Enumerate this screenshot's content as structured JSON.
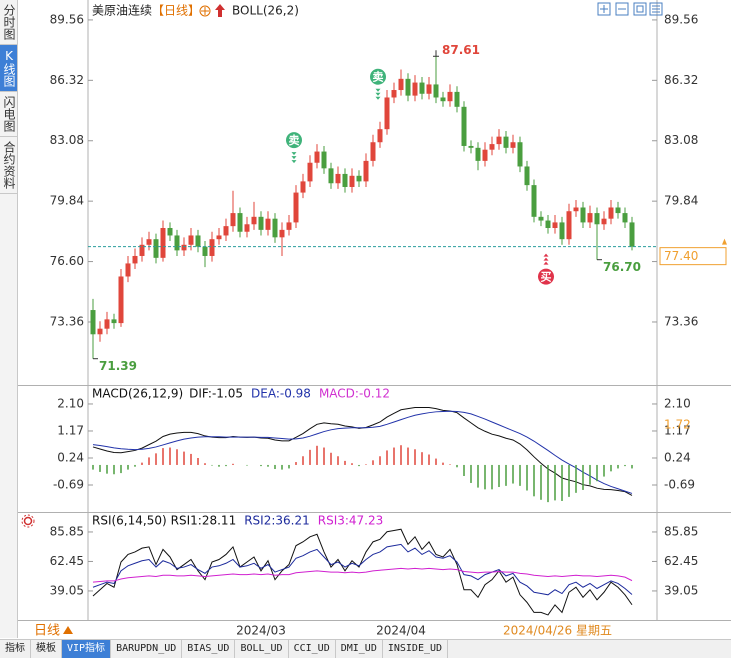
{
  "ui": {
    "side_tabs": [
      {
        "label": "分时图",
        "active": false
      },
      {
        "label": "K线图",
        "active": true
      },
      {
        "label": "闪电图",
        "active": false
      },
      {
        "label": "合约资料",
        "active": false
      }
    ],
    "bottom_tabs": [
      {
        "label": "指标",
        "active": false
      },
      {
        "label": "模板",
        "active": false
      },
      {
        "label": "VIP指标",
        "active": true
      },
      {
        "label": "BARUPDN_UD",
        "active": false
      },
      {
        "label": "BIAS_UD",
        "active": false
      },
      {
        "label": "BOLL_UD",
        "active": false
      },
      {
        "label": "CCI_UD",
        "active": false
      },
      {
        "label": "DMI_UD",
        "active": false
      },
      {
        "label": "INSIDE_UD",
        "active": false
      }
    ],
    "period_button": "日线",
    "cursor_date": "2024/04/26 星期五"
  },
  "chart_data": [
    {
      "type": "candlestick",
      "title": "美原油连续",
      "period": "【日线】",
      "indicator": "BOLL(26,2)",
      "categories": [
        null,
        null,
        null,
        null,
        null,
        null,
        null,
        null,
        null,
        null,
        null,
        null,
        null,
        null,
        null,
        null,
        null,
        null,
        null,
        null,
        null,
        null,
        null,
        null,
        "2024/03",
        null,
        null,
        null,
        null,
        null,
        null,
        null,
        null,
        null,
        null,
        null,
        null,
        null,
        null,
        null,
        null,
        null,
        null,
        null,
        "2024/04",
        null,
        null,
        null,
        null,
        null,
        null,
        null,
        null,
        null,
        null,
        null,
        null,
        null,
        null,
        null,
        null,
        null,
        null,
        null,
        null,
        null,
        null,
        null,
        null,
        null,
        null,
        null,
        null,
        null,
        null,
        null,
        null,
        null
      ],
      "open": [
        74.0,
        72.7,
        73.0,
        73.5,
        73.3,
        75.8,
        76.5,
        76.9,
        77.5,
        77.8,
        76.8,
        78.4,
        78.0,
        77.2,
        77.5,
        78.0,
        77.4,
        76.9,
        77.8,
        78.0,
        78.5,
        79.2,
        78.2,
        78.6,
        79.0,
        78.3,
        78.9,
        77.9,
        78.3,
        78.7,
        80.3,
        80.9,
        81.9,
        82.5,
        81.6,
        80.8,
        81.3,
        80.6,
        81.2,
        80.9,
        82.0,
        83.0,
        83.7,
        85.4,
        85.8,
        86.4,
        85.5,
        86.2,
        85.6,
        86.1,
        85.4,
        85.2,
        85.7,
        84.9,
        82.8,
        82.7,
        82.0,
        82.6,
        82.9,
        83.3,
        82.7,
        83.0,
        81.7,
        80.7,
        79.0,
        78.8,
        78.4,
        78.7,
        77.8,
        79.3,
        79.5,
        78.7,
        79.2,
        78.6,
        78.9,
        79.5,
        79.2,
        78.7
      ],
      "high": [
        74.6,
        73.4,
        73.9,
        73.8,
        76.2,
        76.9,
        77.3,
        77.9,
        78.2,
        78.1,
        78.8,
        78.7,
        78.3,
        77.9,
        78.4,
        78.3,
        77.7,
        78.2,
        78.4,
        78.9,
        80.4,
        79.5,
        79.0,
        79.8,
        79.3,
        79.3,
        79.2,
        78.7,
        79.1,
        80.7,
        81.3,
        82.3,
        82.9,
        82.8,
        81.9,
        81.7,
        81.6,
        81.6,
        81.5,
        82.4,
        83.4,
        84.1,
        85.8,
        86.2,
        86.9,
        86.7,
        86.6,
        86.5,
        86.5,
        87.61,
        85.7,
        86.1,
        86.0,
        85.2,
        83.1,
        83.0,
        83.0,
        83.3,
        83.7,
        83.6,
        83.4,
        83.3,
        82.0,
        81.0,
        79.3,
        79.1,
        79.1,
        79.0,
        79.7,
        79.9,
        79.8,
        79.6,
        79.5,
        79.3,
        79.9,
        79.8,
        79.5,
        79.0
      ],
      "low": [
        71.39,
        72.3,
        72.7,
        73.0,
        73.1,
        75.5,
        76.2,
        76.6,
        77.2,
        76.5,
        76.6,
        77.7,
        76.9,
        76.9,
        77.2,
        77.1,
        76.3,
        76.6,
        77.5,
        77.7,
        78.2,
        77.9,
        77.9,
        78.3,
        78.0,
        78.0,
        77.6,
        76.9,
        78.0,
        78.4,
        80.0,
        80.6,
        81.6,
        81.3,
        80.5,
        80.5,
        80.3,
        80.3,
        80.6,
        80.6,
        81.7,
        82.7,
        83.4,
        85.1,
        85.5,
        85.2,
        85.2,
        85.3,
        85.3,
        85.1,
        84.9,
        84.9,
        84.6,
        82.5,
        82.4,
        81.5,
        81.7,
        82.3,
        82.6,
        82.4,
        82.4,
        81.4,
        80.4,
        78.7,
        78.5,
        78.1,
        78.1,
        77.5,
        77.5,
        79.0,
        78.4,
        78.4,
        76.7,
        78.3,
        78.6,
        78.9,
        78.4,
        77.2
      ],
      "close": [
        72.7,
        73.0,
        73.5,
        73.3,
        75.8,
        76.5,
        76.9,
        77.5,
        77.8,
        76.8,
        78.4,
        78.0,
        77.2,
        77.5,
        78.0,
        77.4,
        76.9,
        77.8,
        78.0,
        78.5,
        79.2,
        78.2,
        78.6,
        79.0,
        78.3,
        78.9,
        77.9,
        78.3,
        78.7,
        80.3,
        80.9,
        81.9,
        82.5,
        81.6,
        80.8,
        81.3,
        80.6,
        81.2,
        80.9,
        82.0,
        83.0,
        83.7,
        85.4,
        85.8,
        86.4,
        85.5,
        86.2,
        85.6,
        86.1,
        85.4,
        85.2,
        85.7,
        84.9,
        82.8,
        82.7,
        82.0,
        82.6,
        82.9,
        83.3,
        82.7,
        83.0,
        81.7,
        80.7,
        79.0,
        78.8,
        78.4,
        78.7,
        77.8,
        79.3,
        79.5,
        78.7,
        79.2,
        78.6,
        78.9,
        79.5,
        79.2,
        78.7,
        77.4
      ],
      "up_color": "#e0463b",
      "down_color": "#4a9e3f",
      "ylim": [
        69.98,
        90.36
      ],
      "yticks": [
        89.56,
        86.32,
        83.08,
        79.84,
        {
          "value": 76.6,
          "label": "76.60"
        },
        73.36
      ],
      "annotations": [
        {
          "value": 87.61,
          "label": "87.61"
        },
        {
          "value": 71.39,
          "label": "71.39"
        },
        {
          "value": 76.7,
          "label": "76.70"
        }
      ],
      "signals": [
        null,
        null,
        null,
        null,
        null,
        null,
        null,
        null,
        null,
        null,
        null,
        null,
        null,
        null,
        null,
        null,
        null,
        null,
        null,
        null,
        null,
        null,
        null,
        null,
        null,
        null,
        null,
        null,
        null,
        {
          "label": "卖",
          "side": "sell"
        },
        null,
        null,
        null,
        null,
        null,
        null,
        null,
        null,
        null,
        null,
        null,
        {
          "label": "卖",
          "side": "sell"
        },
        null,
        null,
        null,
        null,
        null,
        null,
        null,
        null,
        null,
        null,
        null,
        null,
        null,
        null,
        null,
        null,
        null,
        null,
        null,
        null,
        null,
        null,
        null,
        {
          "label": "买",
          "side": "buy"
        },
        null,
        null,
        null,
        null,
        null,
        null,
        null,
        null,
        null,
        null,
        null,
        null
      ],
      "last_price": {
        "value": 77.4,
        "label": "77.40"
      },
      "last_price_color": "#f0a030"
    },
    {
      "type": "macd",
      "title": "MACD(26,12,9)",
      "series": [
        {
          "name": "DIF:",
          "color": "#111111",
          "latest": -1.05,
          "style": "line",
          "values": [
            0.62,
            0.55,
            0.48,
            0.43,
            0.42,
            0.46,
            0.5,
            0.58,
            0.7,
            0.82,
            0.98,
            1.06,
            1.1,
            1.12,
            1.12,
            1.08,
            1.0,
            0.96,
            0.94,
            0.94,
            0.98,
            0.96,
            0.95,
            0.96,
            0.93,
            0.92,
            0.86,
            0.83,
            0.83,
            0.95,
            1.08,
            1.25,
            1.4,
            1.45,
            1.42,
            1.4,
            1.34,
            1.31,
            1.26,
            1.29,
            1.38,
            1.48,
            1.65,
            1.78,
            1.9,
            1.94,
            1.98,
            1.98,
            1.98,
            1.94,
            1.88,
            1.86,
            1.8,
            1.62,
            1.45,
            1.28,
            1.16,
            1.06,
            1.0,
            0.92,
            0.86,
            0.72,
            0.52,
            0.28,
            0.06,
            -0.14,
            -0.28,
            -0.45,
            -0.52,
            -0.58,
            -0.68,
            -0.72,
            -0.8,
            -0.84,
            -0.85,
            -0.88,
            -0.92,
            -1.05
          ]
        },
        {
          "name": "DEA:",
          "color": "#2233aa",
          "latest": -0.98,
          "style": "line",
          "values": [
            0.7,
            0.67,
            0.63,
            0.59,
            0.56,
            0.54,
            0.53,
            0.54,
            0.57,
            0.62,
            0.69,
            0.76,
            0.83,
            0.89,
            0.93,
            0.96,
            0.97,
            0.97,
            0.97,
            0.96,
            0.96,
            0.96,
            0.96,
            0.96,
            0.95,
            0.95,
            0.93,
            0.91,
            0.89,
            0.9,
            0.93,
            0.99,
            1.07,
            1.15,
            1.21,
            1.25,
            1.27,
            1.28,
            1.28,
            1.28,
            1.3,
            1.33,
            1.4,
            1.48,
            1.56,
            1.64,
            1.71,
            1.76,
            1.8,
            1.83,
            1.84,
            1.85,
            1.84,
            1.81,
            1.76,
            1.67,
            1.58,
            1.48,
            1.38,
            1.28,
            1.18,
            1.08,
            0.96,
            0.82,
            0.66,
            0.5,
            0.33,
            0.17,
            0.03,
            -0.1,
            -0.25,
            -0.38,
            -0.52,
            -0.64,
            -0.74,
            -0.82,
            -0.9,
            -0.98
          ]
        },
        {
          "name": "MACD:",
          "color": "#d030d0",
          "latest": -0.12,
          "style": "bar",
          "values": [
            -0.16,
            -0.24,
            -0.3,
            -0.32,
            -0.28,
            -0.16,
            -0.06,
            0.08,
            0.26,
            0.4,
            0.58,
            0.6,
            0.54,
            0.46,
            0.38,
            0.24,
            0.06,
            -0.02,
            -0.06,
            -0.04,
            0.04,
            0.0,
            -0.02,
            0.0,
            -0.04,
            -0.06,
            -0.14,
            -0.16,
            -0.12,
            0.1,
            0.3,
            0.52,
            0.66,
            0.6,
            0.42,
            0.3,
            0.14,
            0.06,
            -0.04,
            0.02,
            0.16,
            0.3,
            0.5,
            0.6,
            0.68,
            0.6,
            0.54,
            0.44,
            0.36,
            0.22,
            0.08,
            0.02,
            -0.08,
            -0.38,
            -0.62,
            -0.78,
            -0.84,
            -0.84,
            -0.76,
            -0.72,
            -0.64,
            -0.72,
            -0.88,
            -1.08,
            -1.2,
            -1.28,
            -1.22,
            -1.24,
            -1.1,
            -0.96,
            -0.86,
            -0.68,
            -0.56,
            -0.4,
            -0.22,
            -0.12,
            -0.04,
            -0.12
          ]
        }
      ],
      "up_color": "#e0463b",
      "down_color": "#4a9e3f",
      "ylim": [
        -1.62,
        2.65
      ],
      "yticks": [
        {
          "value": 2.1,
          "label": "2.10"
        },
        1.17,
        0.24,
        -0.69
      ],
      "cursor_value": 1.72,
      "cursor_color": "#f0a030"
    },
    {
      "type": "line",
      "title": "RSI(6,14,50)",
      "series": [
        {
          "name": "RSI1:",
          "color": "#111111",
          "latest": 28.11,
          "values": [
            35,
            40,
            45,
            42,
            62,
            68,
            70,
            73,
            74,
            60,
            72,
            66,
            56,
            60,
            64,
            55,
            48,
            62,
            64,
            68,
            74,
            58,
            62,
            66,
            55,
            63,
            48,
            55,
            60,
            75,
            78,
            82,
            84,
            70,
            58,
            64,
            55,
            63,
            58,
            70,
            78,
            80,
            86,
            87,
            88,
            76,
            82,
            72,
            78,
            68,
            66,
            72,
            60,
            40,
            40,
            34,
            44,
            48,
            55,
            46,
            50,
            36,
            30,
            22,
            22,
            20,
            28,
            22,
            38,
            42,
            34,
            40,
            32,
            38,
            46,
            42,
            36,
            28.11
          ]
        },
        {
          "name": "RSI2:",
          "color": "#1c2a9c",
          "latest": 36.21,
          "values": [
            42,
            44,
            46,
            45,
            55,
            59,
            61,
            63,
            64,
            58,
            63,
            61,
            57,
            58,
            60,
            56,
            53,
            58,
            59,
            61,
            64,
            58,
            59,
            61,
            57,
            60,
            54,
            56,
            58,
            65,
            67,
            70,
            72,
            66,
            60,
            62,
            58,
            61,
            59,
            64,
            68,
            70,
            74,
            75,
            76,
            70,
            73,
            68,
            71,
            66,
            65,
            67,
            62,
            52,
            51,
            48,
            52,
            54,
            56,
            51,
            53,
            46,
            43,
            38,
            37,
            36,
            40,
            37,
            44,
            46,
            42,
            45,
            41,
            44,
            47,
            45,
            41,
            36.21
          ]
        },
        {
          "name": "RSI3:",
          "color": "#d020d0",
          "latest": 47.23,
          "values": [
            46,
            46.5,
            47,
            47,
            48.5,
            49.5,
            50,
            50.5,
            51,
            50.5,
            51.5,
            51.5,
            51,
            51,
            51.5,
            51,
            50.5,
            51,
            51.5,
            52,
            52.5,
            52,
            52,
            52.5,
            52,
            52.5,
            51.5,
            52,
            52,
            53.5,
            54,
            54.5,
            55,
            54.5,
            54,
            54,
            53.5,
            54,
            53.5,
            54,
            55,
            55.5,
            56,
            56.5,
            57,
            56.5,
            57,
            56.5,
            57,
            56.5,
            56,
            56.5,
            56,
            54.5,
            54,
            53.5,
            54,
            54,
            54.5,
            54,
            54,
            53,
            52.5,
            51.5,
            51,
            50.5,
            51,
            50.5,
            51,
            51.5,
            51,
            51,
            50.5,
            51,
            51.5,
            51,
            50,
            47.23
          ]
        }
      ],
      "ylim": [
        16.0,
        99.3
      ],
      "yticks": [
        85.85,
        62.45,
        39.05
      ]
    }
  ]
}
